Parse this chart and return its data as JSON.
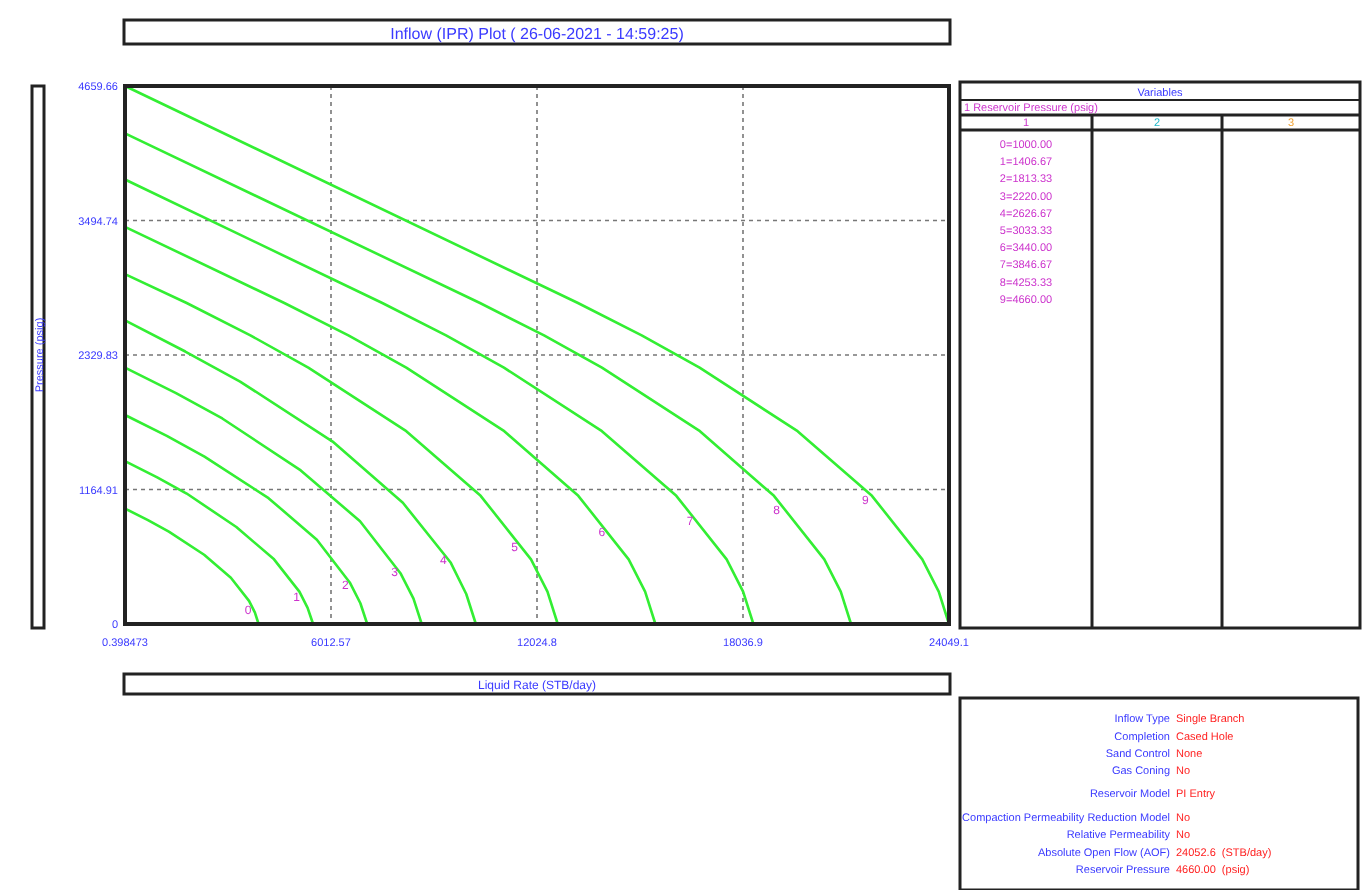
{
  "chart_data": {
    "type": "line",
    "title": "Inflow (IPR) Plot ( 26-06-2021 - 14:59:25)",
    "xlabel": "Liquid Rate  (STB/day)",
    "ylabel": "Pressure  (psig)",
    "xlim": [
      0.398473,
      24049.1
    ],
    "xticks": [
      0.398473,
      6012.57,
      12024.8,
      18036.9,
      24049.1
    ],
    "ylim": [
      0,
      4659.66
    ],
    "yticks": [
      0,
      1164.91,
      2329.83,
      3494.74,
      4659.66
    ],
    "grid": true,
    "marker": "none",
    "line_style": "solid",
    "series": [
      {
        "color": "#33ee33",
        "x": [
          0.4,
          670,
          1280,
          2310,
          3090,
          3620,
          3790,
          3900
        ],
        "values": [
          1000,
          900,
          800,
          600,
          400,
          200,
          100,
          0
        ]
      },
      {
        "color": "#33ee33",
        "x": [
          0.4,
          940,
          1800,
          3250,
          4350,
          5090,
          5330,
          5490
        ],
        "values": [
          1410,
          1270,
          1130,
          840,
          560,
          280,
          140,
          0
        ]
      },
      {
        "color": "#33ee33",
        "x": [
          0.4,
          1220,
          2320,
          4190,
          5600,
          6560,
          6870,
          7070
        ],
        "values": [
          1810,
          1630,
          1450,
          1090,
          730,
          360,
          180,
          0
        ]
      },
      {
        "color": "#33ee33",
        "x": [
          0.4,
          1490,
          2840,
          5130,
          6860,
          8040,
          8420,
          8660
        ],
        "values": [
          2220,
          2000,
          1780,
          1330,
          890,
          440,
          220,
          0
        ]
      },
      {
        "color": "#33ee33",
        "x": [
          0.4,
          1760,
          3360,
          6060,
          8110,
          9510,
          9960,
          10240
        ],
        "values": [
          2630,
          2360,
          2100,
          1580,
          1050,
          530,
          260,
          0
        ]
      },
      {
        "color": "#33ee33",
        "x": [
          0.4,
          1800,
          3660,
          5350,
          8210,
          10380,
          11850,
          12330,
          12630
        ],
        "values": [
          3030,
          2780,
          2500,
          2220,
          1670,
          1110,
          560,
          280,
          0
        ]
      },
      {
        "color": "#33ee33",
        "x": [
          0.4,
          4650,
          6520,
          8210,
          11070,
          13230,
          14700,
          15180,
          15480
        ],
        "values": [
          3440,
          2780,
          2500,
          2220,
          1670,
          1110,
          560,
          280,
          0
        ]
      },
      {
        "color": "#33ee33",
        "x": [
          0.4,
          7510,
          9370,
          11060,
          13920,
          16090,
          17560,
          18040,
          18340
        ],
        "values": [
          3850,
          2780,
          2500,
          2220,
          1670,
          1110,
          560,
          280,
          0
        ]
      },
      {
        "color": "#33ee33",
        "x": [
          0.4,
          10360,
          12230,
          13920,
          16780,
          18940,
          20410,
          20890,
          21190
        ],
        "values": [
          4250,
          2780,
          2500,
          2220,
          1670,
          1110,
          560,
          280,
          0
        ]
      },
      {
        "color": "#33ee33",
        "x": [
          0.4,
          13220,
          15080,
          16770,
          19630,
          21800,
          23270,
          23750,
          24049
        ],
        "values": [
          4659.66,
          2780,
          2500,
          2220,
          1670,
          1110,
          560,
          280,
          0
        ]
      }
    ],
    "annotations": [
      {
        "text": "0",
        "x": 3590,
        "y": 121
      },
      {
        "text": "1",
        "x": 5010,
        "y": 237
      },
      {
        "text": "2",
        "x": 6430,
        "y": 334
      },
      {
        "text": "3",
        "x": 7870,
        "y": 450
      },
      {
        "text": "4",
        "x": 9290,
        "y": 554
      },
      {
        "text": "5",
        "x": 11370,
        "y": 670
      },
      {
        "text": "6",
        "x": 13920,
        "y": 797
      },
      {
        "text": "7",
        "x": 16490,
        "y": 889
      },
      {
        "text": "8",
        "x": 19020,
        "y": 987
      },
      {
        "text": "9",
        "x": 21610,
        "y": 1074
      },
      "Variables",
      "1 Reservoir Pressure (psig)",
      "1",
      "2",
      "3",
      "0=1000.00",
      "1=1406.67",
      "2=1813.33",
      "3=2220.00",
      "4=2626.67",
      "5=3033.33",
      "6=3440.00",
      "7=3846.67",
      "8=4253.33",
      "9=4660.00",
      "Inflow Type",
      "Single Branch",
      "Completion",
      "Cased Hole",
      "Sand Control",
      "None",
      "Gas Coning",
      "No",
      "Reservoir Model",
      "PI Entry",
      "Compaction Permeability Reduction Model",
      "No",
      "Relative Permeability",
      "No",
      "Absolute Open Flow (AOF)",
      "24052.6  (STB/day)",
      "Reservoir Pressure",
      "4660.00  (psig)"
    ]
  }
}
